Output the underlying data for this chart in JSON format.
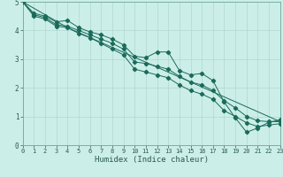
{
  "xlabel": "Humidex (Indice chaleur)",
  "bg_color": "#cceee8",
  "grid_color": "#b0d8d0",
  "line_color": "#1a6b5a",
  "xlim": [
    0,
    23
  ],
  "ylim": [
    0,
    5
  ],
  "xticks": [
    0,
    1,
    2,
    3,
    4,
    5,
    6,
    7,
    8,
    9,
    10,
    11,
    12,
    13,
    14,
    15,
    16,
    17,
    18,
    19,
    20,
    21,
    22,
    23
  ],
  "yticks": [
    0,
    1,
    2,
    3,
    4,
    5
  ],
  "lines": [
    {
      "x": [
        0,
        1,
        2,
        3,
        4,
        5,
        6,
        7,
        8,
        9,
        10,
        11,
        12,
        13,
        14,
        15,
        16,
        17,
        18,
        19,
        20,
        21,
        22,
        23
      ],
      "y": [
        5.0,
        4.6,
        4.5,
        4.3,
        4.35,
        4.1,
        3.95,
        3.85,
        3.7,
        3.5,
        3.1,
        3.05,
        3.25,
        3.25,
        2.6,
        2.45,
        2.5,
        2.25,
        1.5,
        0.95,
        0.45,
        0.6,
        0.8,
        0.88
      ],
      "marker": true
    },
    {
      "x": [
        0,
        1,
        2,
        3,
        4,
        5,
        6,
        7,
        8,
        9,
        10,
        11,
        12,
        13,
        14,
        15,
        16,
        17,
        18,
        19,
        20,
        21,
        22,
        23
      ],
      "y": [
        5.0,
        4.55,
        4.45,
        4.2,
        4.15,
        4.0,
        3.85,
        3.7,
        3.55,
        3.35,
        2.9,
        2.85,
        2.75,
        2.65,
        2.4,
        2.2,
        2.1,
        1.9,
        1.55,
        1.3,
        1.0,
        0.85,
        0.82,
        0.82
      ],
      "marker": true
    },
    {
      "x": [
        0,
        1,
        2,
        3,
        4,
        5,
        6,
        7,
        8,
        9,
        10,
        11,
        12,
        13,
        14,
        15,
        16,
        17,
        18,
        19,
        20,
        21,
        22,
        23
      ],
      "y": [
        5.0,
        4.5,
        4.4,
        4.15,
        4.1,
        3.9,
        3.75,
        3.55,
        3.35,
        3.15,
        2.65,
        2.55,
        2.45,
        2.35,
        2.1,
        1.9,
        1.78,
        1.6,
        1.2,
        1.0,
        0.78,
        0.65,
        0.7,
        0.75
      ],
      "marker": true
    },
    {
      "x": [
        0,
        4,
        23
      ],
      "y": [
        5.0,
        4.1,
        0.82
      ],
      "marker": false
    }
  ]
}
